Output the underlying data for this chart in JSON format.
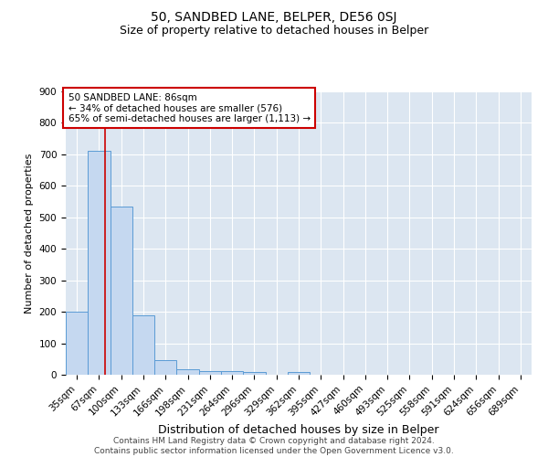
{
  "title": "50, SANDBED LANE, BELPER, DE56 0SJ",
  "subtitle": "Size of property relative to detached houses in Belper",
  "xlabel": "Distribution of detached houses by size in Belper",
  "ylabel": "Number of detached properties",
  "categories": [
    "35sqm",
    "67sqm",
    "100sqm",
    "133sqm",
    "166sqm",
    "198sqm",
    "231sqm",
    "264sqm",
    "296sqm",
    "329sqm",
    "362sqm",
    "395sqm",
    "427sqm",
    "460sqm",
    "493sqm",
    "525sqm",
    "558sqm",
    "591sqm",
    "624sqm",
    "656sqm",
    "689sqm"
  ],
  "values": [
    200,
    710,
    535,
    190,
    46,
    18,
    13,
    13,
    9,
    0,
    9,
    0,
    0,
    0,
    0,
    0,
    0,
    0,
    0,
    0,
    0
  ],
  "bar_color": "#c5d8f0",
  "bar_edge_color": "#5b9bd5",
  "background_color": "#dce6f1",
  "grid_color": "#ffffff",
  "vline_x": 1.28,
  "vline_color": "#cc0000",
  "annotation_text": "50 SANDBED LANE: 86sqm\n← 34% of detached houses are smaller (576)\n65% of semi-detached houses are larger (1,113) →",
  "annotation_box_color": "#ffffff",
  "annotation_box_edge": "#cc0000",
  "ylim": [
    0,
    900
  ],
  "yticks": [
    0,
    100,
    200,
    300,
    400,
    500,
    600,
    700,
    800,
    900
  ],
  "footer": "Contains HM Land Registry data © Crown copyright and database right 2024.\nContains public sector information licensed under the Open Government Licence v3.0.",
  "title_fontsize": 10,
  "subtitle_fontsize": 9,
  "xlabel_fontsize": 9,
  "ylabel_fontsize": 8,
  "tick_fontsize": 7.5,
  "annotation_fontsize": 7.5,
  "footer_fontsize": 6.5
}
